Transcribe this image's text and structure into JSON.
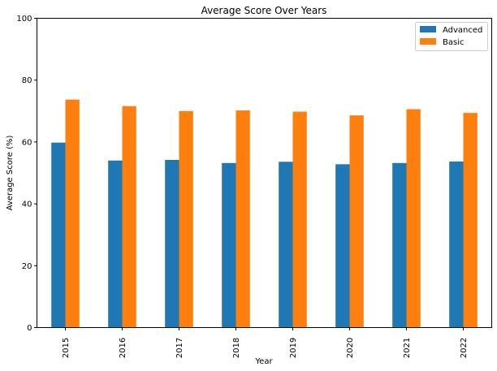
{
  "chart_data": {
    "type": "bar",
    "title": "Average Score Over Years",
    "xlabel": "Year",
    "ylabel": "Average Score (%)",
    "categories": [
      "2015",
      "2016",
      "2017",
      "2018",
      "2019",
      "2020",
      "2021",
      "2022"
    ],
    "series": [
      {
        "name": "Advanced",
        "color": "#1f77b4",
        "values": [
          59.8,
          54.0,
          54.2,
          53.2,
          53.6,
          52.8,
          53.2,
          53.7
        ]
      },
      {
        "name": "Basic",
        "color": "#ff7f0e",
        "values": [
          73.7,
          71.6,
          70.0,
          70.2,
          69.8,
          68.6,
          70.6,
          69.4
        ]
      }
    ],
    "ylim": [
      0,
      100
    ],
    "yticks": [
      "0",
      "20",
      "40",
      "60",
      "80",
      "100"
    ],
    "grid": false,
    "legend_position": "top-right"
  }
}
